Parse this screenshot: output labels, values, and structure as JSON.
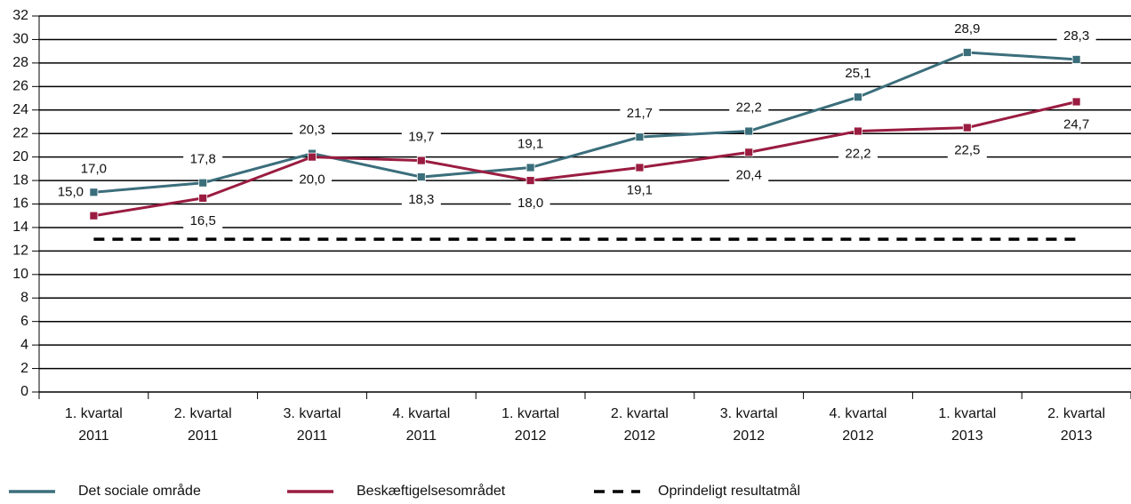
{
  "chart_data": {
    "type": "line",
    "categories": [
      "1. kvartal 2011",
      "2. kvartal 2011",
      "3. kvartal 2011",
      "4. kvartal 2011",
      "1. kvartal 2012",
      "2. kvartal 2012",
      "3. kvartal 2012",
      "4. kvartal 2012",
      "1. kvartal 2013",
      "2. kvartal 2013"
    ],
    "series": [
      {
        "name": "Det sociale område",
        "color": "#3b6e7b",
        "values": [
          17.0,
          17.8,
          20.3,
          18.3,
          19.1,
          21.7,
          22.2,
          25.1,
          28.9,
          28.3
        ],
        "value_labels": [
          "17,0",
          "17,8",
          "20,3",
          "18,3",
          "19,1",
          "21,7",
          "22,2",
          "25,1",
          "28,9",
          "28,3"
        ]
      },
      {
        "name": "Beskæftigelsesområdet",
        "color": "#9a1c40",
        "values": [
          15.0,
          16.5,
          20.0,
          19.7,
          18.0,
          19.1,
          20.4,
          22.2,
          22.5,
          24.7
        ],
        "value_labels": [
          "15,0",
          "16,5",
          "20,0",
          "19,7",
          "18,0",
          "19,1",
          "20,4",
          "22,2",
          "22,5",
          "24,7"
        ]
      },
      {
        "name": "Oprindeligt resultatmål",
        "color": "#000000",
        "dashed": true,
        "values": [
          13,
          13,
          13,
          13,
          13,
          13,
          13,
          13,
          13,
          13
        ]
      }
    ],
    "ylim": [
      0,
      32
    ],
    "yticks": [
      0,
      2,
      4,
      6,
      8,
      10,
      12,
      14,
      16,
      18,
      20,
      22,
      24,
      26,
      28,
      30,
      32
    ],
    "grid": true,
    "legend": "bottom"
  }
}
